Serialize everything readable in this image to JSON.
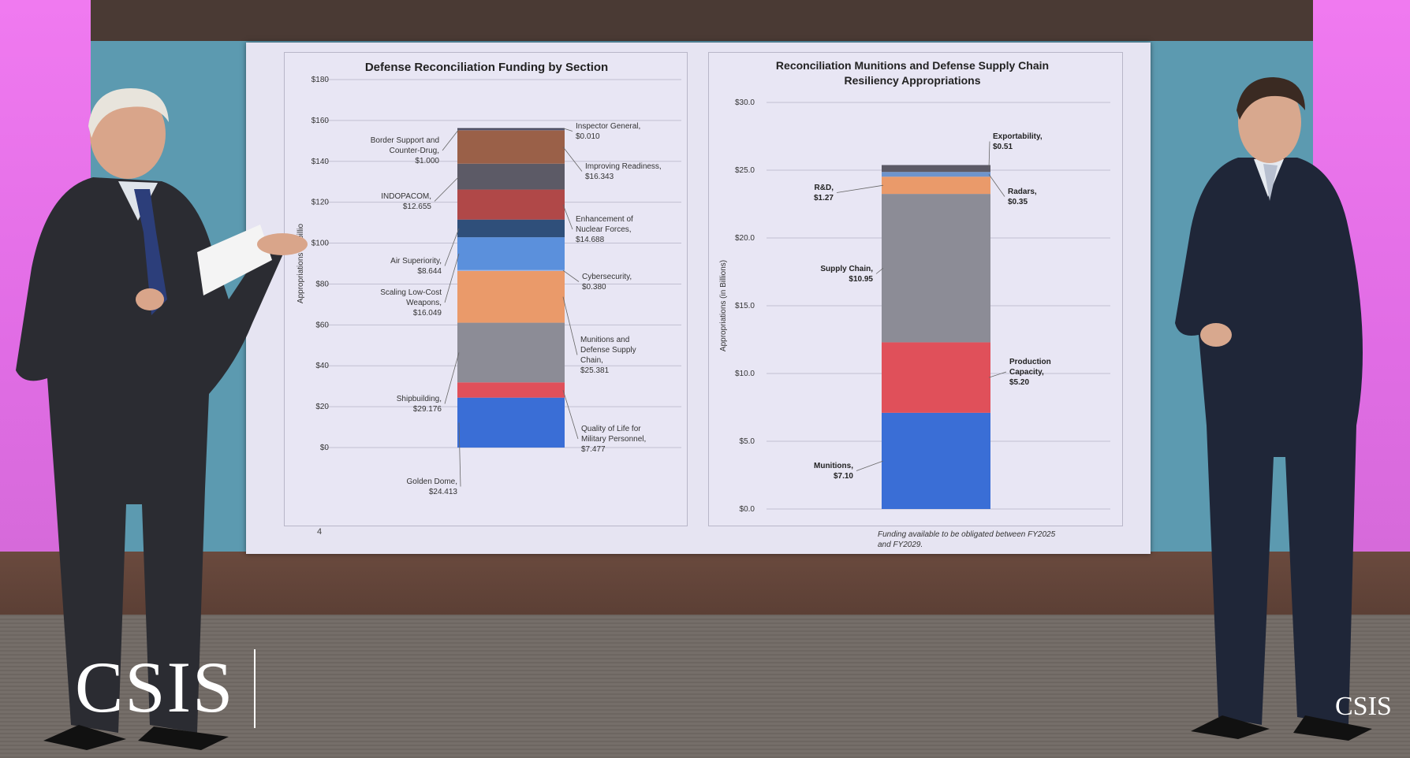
{
  "chart_data": [
    {
      "type": "bar",
      "stacked": true,
      "title": "Defense Reconciliation Funding by Section",
      "ylabel": "Appropriations (in billio",
      "ylim": [
        0,
        180
      ],
      "yticks": [
        "$0",
        "$20",
        "$40",
        "$60",
        "$80",
        "$100",
        "$120",
        "$140",
        "$160",
        "$180"
      ],
      "grid": true,
      "page_number": "4",
      "segments": [
        {
          "name": "Golden Dome,",
          "label": "$24.413",
          "value": 24.413,
          "color": "#3a6ed6",
          "side": "left"
        },
        {
          "name": "Quality of Life for Military Personnel,",
          "label": "$7.477",
          "value": 7.477,
          "color": "#e0505a",
          "side": "right"
        },
        {
          "name": "Shipbuilding,",
          "label": "$29.176",
          "value": 29.176,
          "color": "#8c8c96",
          "side": "left"
        },
        {
          "name": "Munitions and Defense Supply Chain,",
          "label": "$25.381",
          "value": 25.381,
          "color": "#ea9a6a",
          "side": "right"
        },
        {
          "name": "Cybersecurity,",
          "label": "$0.380",
          "value": 0.38,
          "color": "#9fb3e0",
          "side": "right"
        },
        {
          "name": "Scaling Low-Cost Weapons,",
          "label": "$16.049",
          "value": 16.049,
          "color": "#5b90dc",
          "side": "left"
        },
        {
          "name": "Air Superiority,",
          "label": "$8.644",
          "value": 8.644,
          "color": "#2f4f7a",
          "side": "left"
        },
        {
          "name": "Enhancement of Nuclear Forces,",
          "label": "$14.688",
          "value": 14.688,
          "color": "#b04848",
          "side": "right"
        },
        {
          "name": "INDOPACOM,",
          "label": "$12.655",
          "value": 12.655,
          "color": "#5c5a66",
          "side": "left"
        },
        {
          "name": "Improving Readiness,",
          "label": "$16.343",
          "value": 16.343,
          "color": "#9a6048",
          "side": "right"
        },
        {
          "name": "Border Support and Counter-Drug,",
          "label": "$1.000",
          "value": 1.0,
          "color": "#5a5e7a",
          "side": "left"
        },
        {
          "name": "Inspector General,",
          "label": "$0.010",
          "value": 0.01,
          "color": "#404050",
          "side": "right"
        }
      ]
    },
    {
      "type": "bar",
      "stacked": true,
      "title": "Reconciliation Munitions and Defense Supply Chain Resiliency Appropriations",
      "ylabel": "Appropriations (in Billions)",
      "ylim": [
        0,
        30
      ],
      "yticks": [
        "$0.0",
        "$5.0",
        "$10.0",
        "$15.0",
        "$20.0",
        "$25.0",
        "$30.0"
      ],
      "grid": true,
      "note": "Funding available to be obligated between FY2025 and FY2029.",
      "segments": [
        {
          "name": "Munitions,",
          "label": "$7.10",
          "value": 7.1,
          "color": "#3a6ed6",
          "side": "left"
        },
        {
          "name": "Production Capacity,",
          "label": "$5.20",
          "value": 5.2,
          "color": "#e0505a",
          "side": "right"
        },
        {
          "name": "Supply Chain,",
          "label": "$10.95",
          "value": 10.95,
          "color": "#8c8c96",
          "side": "left"
        },
        {
          "name": "R&D,",
          "label": "$1.27",
          "value": 1.27,
          "color": "#ea9a6a",
          "side": "left"
        },
        {
          "name": "Radars,",
          "label": "$0.35",
          "value": 0.35,
          "color": "#6e94cc",
          "side": "right"
        },
        {
          "name": "Exportability,",
          "label": "$0.51",
          "value": 0.51,
          "color": "#5c5a66",
          "side": "right"
        }
      ]
    }
  ],
  "branding": {
    "logo_large": "CSIS",
    "logo_small": "CSIS"
  }
}
